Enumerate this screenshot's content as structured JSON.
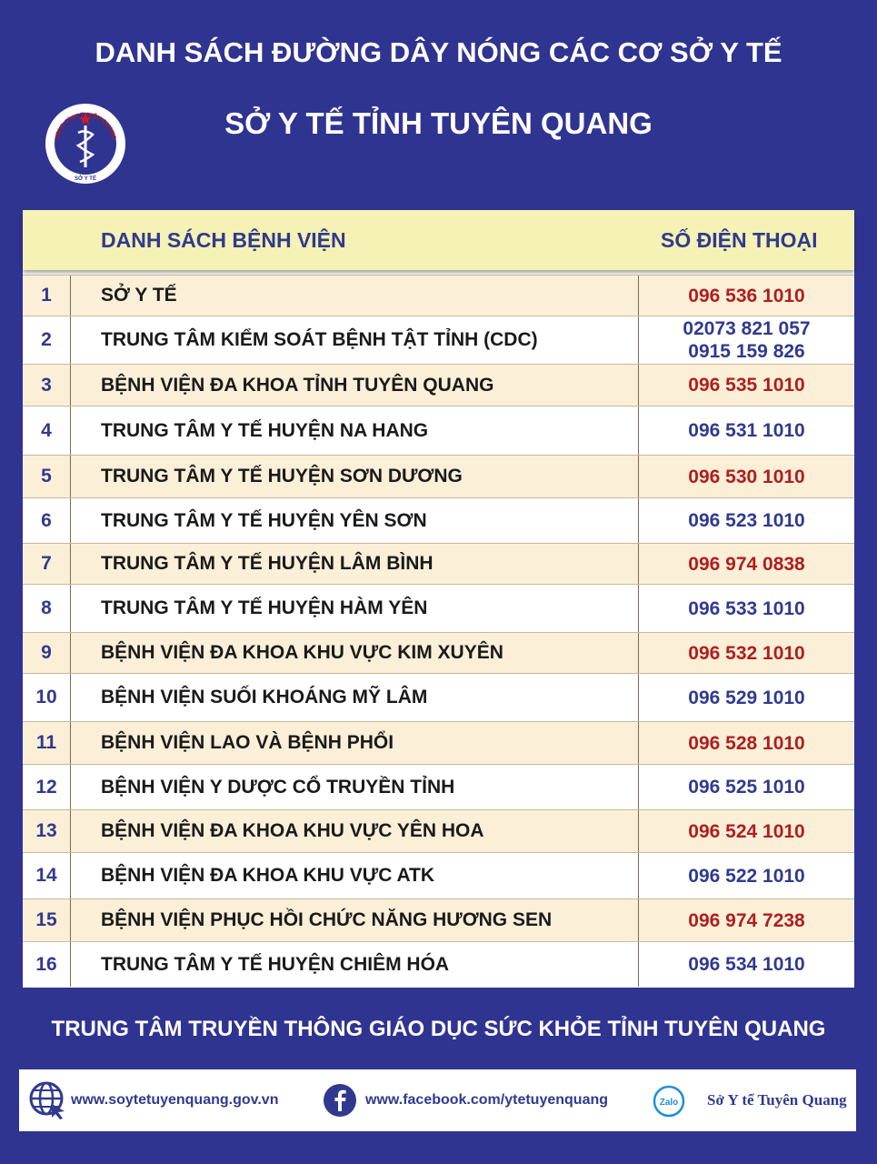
{
  "header": {
    "title": "DANH SÁCH ĐƯỜNG DÂY NÓNG CÁC CƠ SỞ Y TẾ",
    "subtitle": "SỞ Y TẾ TỈNH TUYÊN QUANG"
  },
  "logo": {
    "top_text": "UBND TỈNH TUYÊN QUANG",
    "bottom_text": "SỞ Y TẾ"
  },
  "table": {
    "columns": [
      "DANH SÁCH BỆNH VIỆN",
      "SỐ ĐIỆN THOẠI"
    ],
    "rows": [
      [
        1,
        "SỞ Y TẾ",
        [
          "096 536 1010"
        ]
      ],
      [
        2,
        "TRUNG TÂM KIỂM SOÁT BỆNH TẬT TỈNH (CDC)",
        [
          "02073 821 057",
          "0915 159 826"
        ]
      ],
      [
        3,
        "BỆNH VIỆN ĐA KHOA TỈNH TUYÊN QUANG",
        [
          "096 535 1010"
        ]
      ],
      [
        4,
        "TRUNG TÂM Y TẾ HUYỆN NA HANG",
        [
          "096 531 1010"
        ]
      ],
      [
        5,
        "TRUNG TÂM Y TẾ HUYỆN SƠN DƯƠNG",
        [
          "096 530 1010"
        ]
      ],
      [
        6,
        "TRUNG TÂM Y TẾ HUYỆN YÊN SƠN",
        [
          "096 523 1010"
        ]
      ],
      [
        7,
        "TRUNG TÂM Y TẾ HUYỆN LÂM BÌNH",
        [
          "096 974 0838"
        ]
      ],
      [
        8,
        "TRUNG TÂM Y TẾ HUYỆN HÀM YÊN",
        [
          "096 533 1010"
        ]
      ],
      [
        9,
        "BỆNH VIỆN ĐA KHOA KHU VỰC KIM XUYÊN",
        [
          "096 532 1010"
        ]
      ],
      [
        10,
        "BỆNH VIỆN SUỐI KHOÁNG MỸ LÂM",
        [
          "096 529 1010"
        ]
      ],
      [
        11,
        "BỆNH VIỆN LAO VÀ BỆNH PHỔI",
        [
          "096 528 1010"
        ]
      ],
      [
        12,
        "BỆNH VIỆN Y DƯỢC CỔ TRUYỀN TỈNH",
        [
          "096 525 1010"
        ]
      ],
      [
        13,
        "BỆNH VIỆN ĐA KHOA KHU VỰC YÊN HOA",
        [
          "096 524 1010"
        ]
      ],
      [
        14,
        "BỆNH VIỆN ĐA KHOA KHU VỰC ATK",
        [
          "096 522 1010"
        ]
      ],
      [
        15,
        "BỆNH VIỆN PHỤC HỒI CHỨC NĂNG HƯƠNG SEN",
        [
          "096 974 7238"
        ]
      ],
      [
        16,
        "TRUNG TÂM Y TẾ HUYỆN CHIÊM HÓA",
        [
          "096 534 1010"
        ]
      ]
    ]
  },
  "footer": {
    "organization": "TRUNG TÂM TRUYỀN THÔNG GIÁO DỤC SỨC KHỎE TỈNH TUYÊN QUANG",
    "website": "www.soytetuyenquang.gov.vn",
    "facebook": "www.facebook.com/ytetuyenquang",
    "zalo_icon": "Zalo",
    "zalo": "Sở Y tế Tuyên Quang"
  }
}
